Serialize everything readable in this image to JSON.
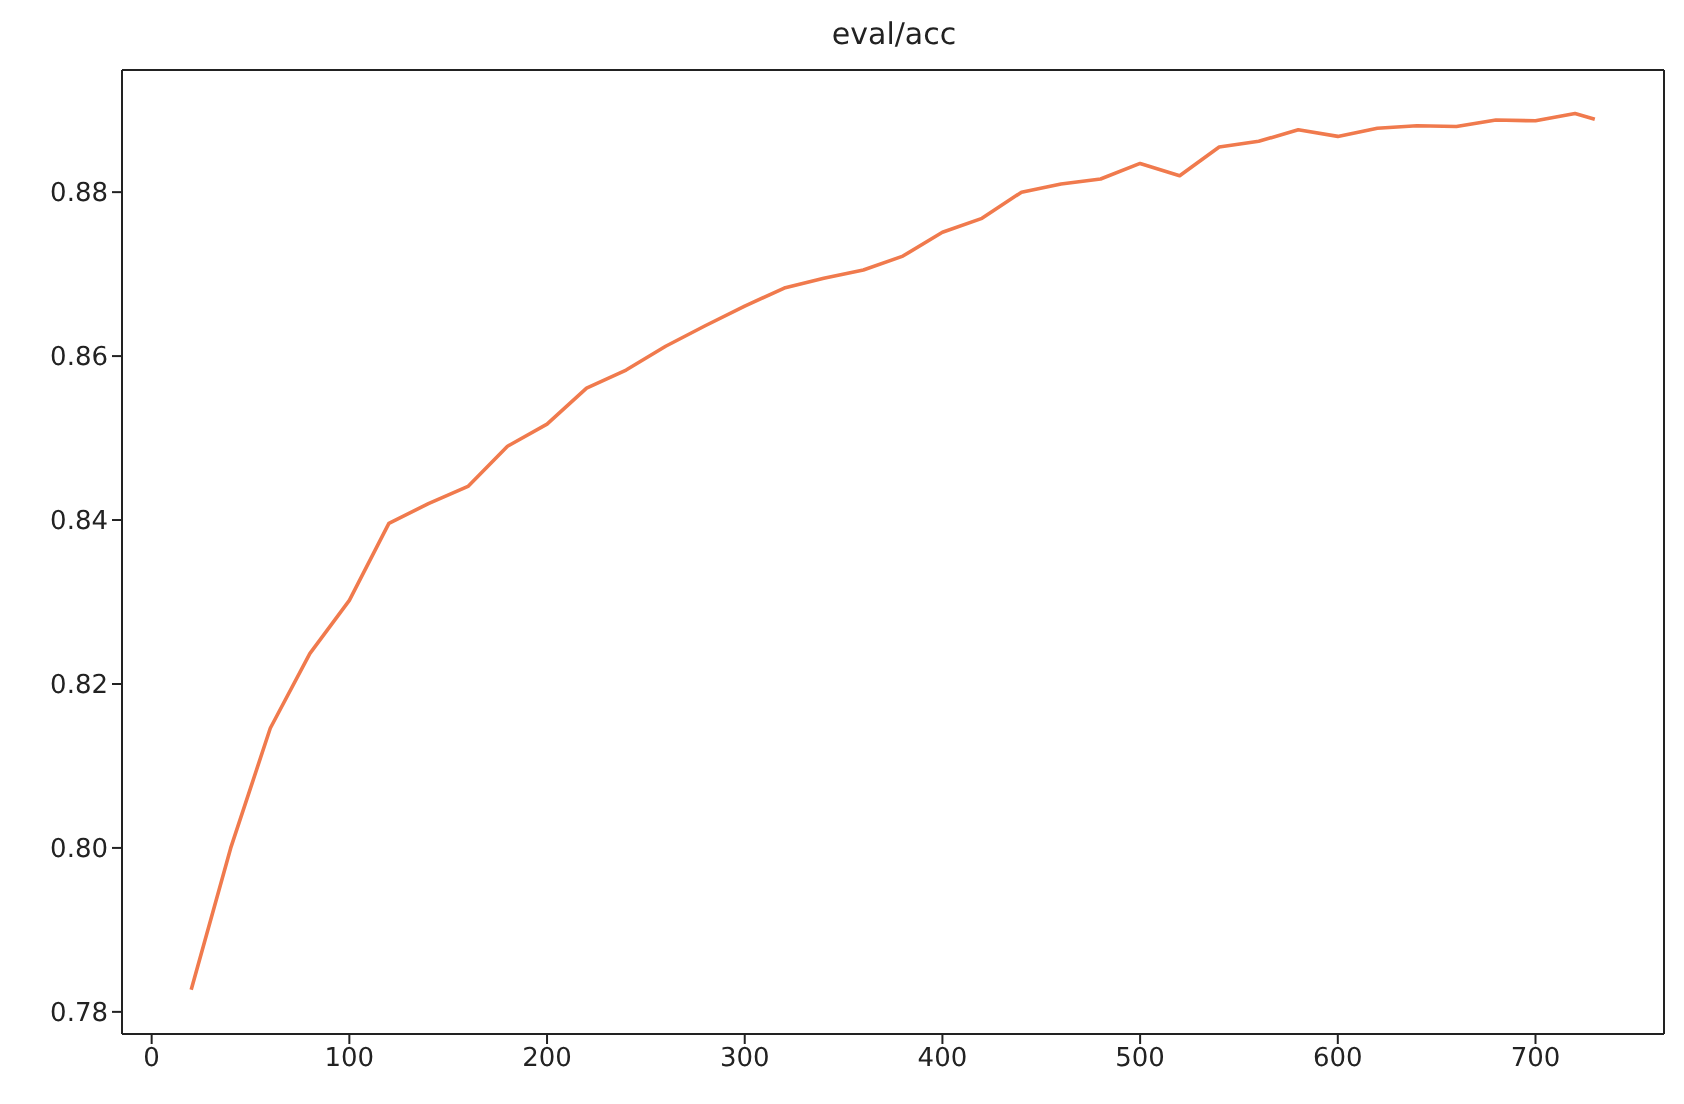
{
  "chart_data": {
    "type": "line",
    "title": "eval/acc",
    "x": [
      20,
      40,
      60,
      80,
      100,
      120,
      140,
      160,
      180,
      200,
      220,
      240,
      260,
      280,
      300,
      320,
      340,
      360,
      380,
      400,
      420,
      440,
      460,
      480,
      500,
      520,
      540,
      560,
      580,
      600,
      620,
      640,
      660,
      680,
      700,
      720,
      730
    ],
    "series": [
      {
        "color": "#f07a4d",
        "values": [
          0.7827,
          0.8,
          0.8146,
          0.8237,
          0.8302,
          0.8396,
          0.842,
          0.8441,
          0.849,
          0.8517,
          0.8561,
          0.8583,
          0.8612,
          0.8637,
          0.8661,
          0.8683,
          0.8695,
          0.8705,
          0.8722,
          0.8751,
          0.8768,
          0.88,
          0.881,
          0.8816,
          0.8835,
          0.882,
          0.8855,
          0.8862,
          0.8876,
          0.8868,
          0.8878,
          0.8881,
          0.888,
          0.8888,
          0.8887,
          0.8896,
          0.8889
        ]
      }
    ],
    "xlim": [
      -15,
      765
    ],
    "xticks": [
      0,
      100,
      200,
      300,
      400,
      500,
      600,
      700
    ],
    "ylim": [
      0.7773,
      0.8949
    ],
    "yticks": [
      {
        "value": 0.78,
        "label": "0.78"
      },
      {
        "value": 0.8,
        "label": "0.80"
      },
      {
        "value": 0.82,
        "label": "0.82"
      },
      {
        "value": 0.84,
        "label": "0.84"
      },
      {
        "value": 0.86,
        "label": "0.86"
      },
      {
        "value": 0.88,
        "label": "0.88"
      }
    ],
    "grid": false,
    "line_style": "solid",
    "marker": "none"
  }
}
